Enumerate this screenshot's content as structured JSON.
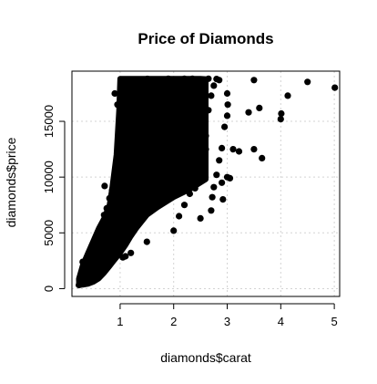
{
  "chart_data": {
    "type": "scatter",
    "title": "Price of Diamonds",
    "xlabel": "diamonds$carat",
    "ylabel": "diamonds$price",
    "xlim": [
      0.1,
      5.1
    ],
    "ylim": [
      -700,
      19500
    ],
    "x_ticks": [
      1,
      2,
      3,
      4,
      5
    ],
    "y_ticks": [
      0,
      5000,
      10000,
      15000
    ],
    "grid": true,
    "marker_color": "#000000",
    "grid_color": "#d3d3d3",
    "dense_region": [
      [
        0.23,
        326
      ],
      [
        0.3,
        340
      ],
      [
        0.4,
        420
      ],
      [
        0.5,
        600
      ],
      [
        0.6,
        900
      ],
      [
        0.7,
        1400
      ],
      [
        0.8,
        2000
      ],
      [
        0.9,
        2600
      ],
      [
        1.0,
        3200
      ],
      [
        1.1,
        3900
      ],
      [
        1.2,
        4700
      ],
      [
        1.3,
        5400
      ],
      [
        1.4,
        6000
      ],
      [
        1.5,
        6600
      ],
      [
        1.7,
        7300
      ],
      [
        2.0,
        8200
      ],
      [
        2.3,
        8900
      ],
      [
        2.6,
        9800
      ],
      [
        2.6,
        18800
      ],
      [
        2.5,
        18823
      ],
      [
        1.0,
        18823
      ],
      [
        0.98,
        16000
      ],
      [
        0.93,
        12000
      ],
      [
        0.85,
        9000
      ],
      [
        0.8,
        7500
      ],
      [
        0.7,
        6300
      ],
      [
        0.6,
        5400
      ],
      [
        0.5,
        4300
      ],
      [
        0.4,
        3200
      ],
      [
        0.3,
        2100
      ],
      [
        0.23,
        900
      ]
    ],
    "points": [
      [
        0.25,
        350
      ],
      [
        0.28,
        500
      ],
      [
        0.3,
        700
      ],
      [
        0.32,
        1000
      ],
      [
        0.35,
        1300
      ],
      [
        0.38,
        1700
      ],
      [
        0.4,
        2300
      ],
      [
        0.42,
        2800
      ],
      [
        0.45,
        3300
      ],
      [
        0.5,
        3900
      ],
      [
        0.55,
        4300
      ],
      [
        0.6,
        5000
      ],
      [
        0.65,
        5600
      ],
      [
        0.7,
        6600
      ],
      [
        0.75,
        7200
      ],
      [
        0.8,
        8100
      ],
      [
        0.85,
        8800
      ],
      [
        0.9,
        9700
      ],
      [
        0.92,
        10500
      ],
      [
        0.95,
        11500
      ],
      [
        0.98,
        13500
      ],
      [
        1.0,
        15000
      ],
      [
        1.02,
        17000
      ],
      [
        1.05,
        18700
      ],
      [
        0.71,
        9200
      ],
      [
        0.3,
        2400
      ],
      [
        0.36,
        2000
      ],
      [
        0.5,
        2400
      ],
      [
        1.05,
        2800
      ],
      [
        1.1,
        2900
      ],
      [
        1.2,
        3200
      ],
      [
        1.5,
        4200
      ],
      [
        2.0,
        5200
      ],
      [
        2.1,
        6500
      ],
      [
        2.2,
        7500
      ],
      [
        2.3,
        8500
      ],
      [
        2.4,
        9000
      ],
      [
        2.5,
        10200
      ],
      [
        2.55,
        11000
      ],
      [
        2.6,
        12500
      ],
      [
        2.6,
        13700
      ],
      [
        2.55,
        15000
      ],
      [
        2.65,
        16000
      ],
      [
        2.7,
        17300
      ],
      [
        2.75,
        18200
      ],
      [
        2.8,
        18800
      ],
      [
        2.85,
        18700
      ],
      [
        2.65,
        18823
      ],
      [
        2.45,
        18700
      ],
      [
        2.35,
        18823
      ],
      [
        2.1,
        18700
      ],
      [
        1.9,
        18823
      ],
      [
        1.8,
        18600
      ],
      [
        1.7,
        18700
      ],
      [
        1.51,
        18806
      ],
      [
        1.3,
        18500
      ],
      [
        1.2,
        18400
      ],
      [
        1.1,
        18600
      ],
      [
        2.5,
        6300
      ],
      [
        2.7,
        7000
      ],
      [
        2.72,
        8200
      ],
      [
        2.75,
        9100
      ],
      [
        2.8,
        10200
      ],
      [
        2.85,
        11500
      ],
      [
        2.9,
        12600
      ],
      [
        2.95,
        14500
      ],
      [
        3.0,
        15500
      ],
      [
        3.01,
        16500
      ],
      [
        3.0,
        17500
      ],
      [
        2.92,
        8000
      ],
      [
        2.9,
        9500
      ],
      [
        3.0,
        10000
      ],
      [
        3.05,
        9900
      ],
      [
        3.11,
        12500
      ],
      [
        3.22,
        12300
      ],
      [
        3.4,
        15800
      ],
      [
        3.5,
        12500
      ],
      [
        3.65,
        11700
      ],
      [
        3.6,
        16200
      ],
      [
        3.5,
        18700
      ],
      [
        4.0,
        15200
      ],
      [
        4.01,
        15700
      ],
      [
        4.13,
        17300
      ],
      [
        4.5,
        18531
      ],
      [
        5.01,
        18018
      ],
      [
        2.2,
        18823
      ],
      [
        2.4,
        17000
      ],
      [
        2.1,
        16000
      ],
      [
        2.3,
        15500
      ],
      [
        2.25,
        14000
      ],
      [
        0.23,
        326
      ],
      [
        0.24,
        800
      ],
      [
        0.27,
        1200
      ],
      [
        0.9,
        17500
      ],
      [
        0.95,
        16500
      ]
    ]
  }
}
